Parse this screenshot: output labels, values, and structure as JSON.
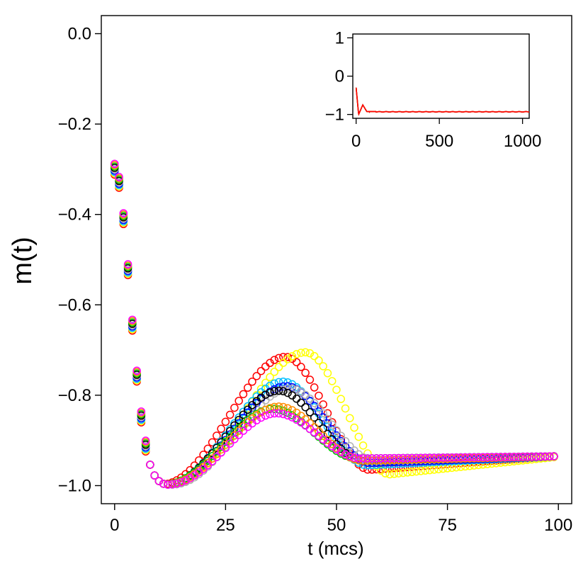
{
  "chart_data": [
    {
      "type": "scatter",
      "title": "",
      "xlabel": "t (mcs)",
      "ylabel": "m(t)",
      "xlim": [
        -3,
        103
      ],
      "ylim": [
        -1.04,
        0.04
      ],
      "xticks": [
        "0",
        "25",
        "50",
        "75",
        "100"
      ],
      "yticks": [
        "0.0",
        "−0.2",
        "−0.4",
        "−0.6",
        "−0.8",
        "−1.0"
      ],
      "marker": "open-circle",
      "grid": false,
      "legend": "none",
      "series": [
        {
          "color": "#ff0000",
          "peak_t": 39.5,
          "peak_m": -0.715,
          "late_m": -0.965,
          "rise_shift": -1.0
        },
        {
          "color": "#ffff00",
          "peak_t": 42.0,
          "peak_m": -0.705,
          "late_m": -0.975,
          "rise_shift": 1.0
        },
        {
          "color": "#00bfff",
          "peak_t": 38.0,
          "peak_m": -0.77,
          "late_m": -0.955,
          "rise_shift": 0.0
        },
        {
          "color": "#0000ff",
          "peak_t": 38.5,
          "peak_m": -0.78,
          "late_m": -0.95,
          "rise_shift": 0.2
        },
        {
          "color": "#b0b0b0",
          "peak_t": 38.0,
          "peak_m": -0.785,
          "late_m": -0.945,
          "rise_shift": 1.5
        },
        {
          "color": "#000000",
          "peak_t": 37.0,
          "peak_m": -0.79,
          "late_m": -0.945,
          "rise_shift": 0.0
        },
        {
          "color": "#00cc00",
          "peak_t": 36.0,
          "peak_m": -0.83,
          "late_m": -0.94,
          "rise_shift": -0.3
        },
        {
          "color": "#ff8c00",
          "peak_t": 37.0,
          "peak_m": -0.825,
          "late_m": -0.945,
          "rise_shift": 0.0
        },
        {
          "color": "#ff00ff",
          "peak_t": 36.0,
          "peak_m": -0.84,
          "late_m": -0.94,
          "rise_shift": 0.5
        }
      ]
    },
    {
      "type": "line",
      "title": "",
      "xlim": [
        -20,
        1040
      ],
      "ylim": [
        -1.1,
        1.1
      ],
      "xticks": [
        "0",
        "500",
        "1000"
      ],
      "yticks": [
        "1",
        "0",
        "−1"
      ],
      "line_colors": [
        "#000000",
        "#ff8c00",
        "#ff0000"
      ],
      "initial_m": -0.3,
      "dip_t": 15,
      "dip_m": -1.0,
      "bump_t": 40,
      "bump_m": -0.75,
      "steady_m": -0.93
    }
  ]
}
